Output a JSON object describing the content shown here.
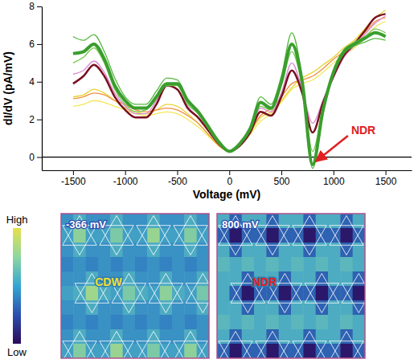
{
  "chart_data": [
    {
      "type": "line",
      "xlabel": "Voltage (mV)",
      "ylabel": "dI/dV (pA/mV)",
      "x": [
        -1500,
        -1400,
        -1300,
        -1200,
        -1100,
        -1000,
        -900,
        -800,
        -700,
        -600,
        -500,
        -400,
        -300,
        -200,
        -100,
        0,
        100,
        200,
        300,
        400,
        500,
        600,
        700,
        800,
        900,
        1000,
        1100,
        1200,
        1300,
        1400,
        1500
      ],
      "xlim": [
        -1800,
        1750
      ],
      "xticks": [
        -1500,
        -1000,
        -500,
        0,
        500,
        1000,
        1500
      ],
      "ylim": [
        -0.7,
        8
      ],
      "yticks": [
        0,
        2,
        4,
        6,
        8
      ],
      "hlines": [
        0
      ],
      "annotations": [
        {
          "text": "NDR",
          "x": 800,
          "y": -0.4,
          "color": "#e02020"
        }
      ],
      "series": [
        {
          "color": "#f2e85a",
          "values": [
            2.7,
            2.8,
            3.0,
            2.9,
            2.7,
            2.5,
            2.3,
            2.2,
            2.3,
            2.4,
            2.3,
            2.0,
            1.6,
            1.1,
            0.6,
            0.3,
            0.6,
            1.2,
            1.9,
            2.3,
            2.9,
            3.6,
            3.9,
            4.1,
            4.5,
            5.0,
            5.4,
            5.8,
            6.3,
            6.9,
            7.2
          ]
        },
        {
          "color": "#e8d230",
          "values": [
            3.2,
            3.3,
            3.6,
            3.4,
            3.0,
            2.6,
            2.4,
            2.3,
            2.5,
            2.8,
            2.7,
            2.3,
            1.8,
            1.2,
            0.6,
            0.3,
            0.6,
            1.3,
            2.1,
            2.4,
            3.0,
            3.7,
            4.2,
            4.5,
            4.9,
            5.3,
            5.8,
            6.2,
            6.8,
            7.4,
            7.8
          ]
        },
        {
          "color": "#f09040",
          "values": [
            3.1,
            3.2,
            3.4,
            3.3,
            3.0,
            2.8,
            2.5,
            2.4,
            2.5,
            2.6,
            2.5,
            2.2,
            1.8,
            1.2,
            0.6,
            0.3,
            0.7,
            1.4,
            2.2,
            2.6,
            3.2,
            3.9,
            4.1,
            4.3,
            4.7,
            5.2,
            5.6,
            6.1,
            6.6,
            7.2,
            7.4
          ]
        },
        {
          "color": "#d98ad0",
          "values": [
            4.4,
            4.6,
            5.1,
            4.5,
            3.4,
            2.7,
            2.3,
            2.3,
            3.0,
            3.8,
            3.6,
            2.7,
            2.1,
            1.4,
            0.7,
            0.3,
            0.6,
            1.4,
            2.6,
            2.4,
            3.4,
            5.0,
            3.6,
            1.8,
            3.0,
            4.2,
            5.3,
            5.9,
            6.5,
            7.1,
            7.5
          ]
        },
        {
          "color": "#7a1020",
          "line_style": "medium",
          "values": [
            3.9,
            4.3,
            4.9,
            4.3,
            3.2,
            2.5,
            2.1,
            2.1,
            2.8,
            3.8,
            3.6,
            2.6,
            2.1,
            1.4,
            0.7,
            0.3,
            0.6,
            1.3,
            2.4,
            2.2,
            3.2,
            4.6,
            3.4,
            1.3,
            2.9,
            4.3,
            5.4,
            6.0,
            6.7,
            7.4,
            7.6
          ]
        },
        {
          "color": "#58b840",
          "values": [
            6.4,
            6.2,
            6.5,
            5.6,
            4.2,
            3.2,
            2.8,
            2.8,
            3.5,
            4.2,
            4.1,
            3.1,
            2.5,
            1.7,
            0.8,
            0.3,
            0.7,
            1.6,
            3.2,
            2.8,
            4.3,
            6.6,
            4.2,
            -0.6,
            2.3,
            4.4,
            5.5,
            5.9,
            6.1,
            6.3,
            6.2
          ]
        },
        {
          "color": "#78c850",
          "values": [
            5.0,
            5.3,
            5.8,
            5.0,
            3.6,
            2.8,
            2.4,
            2.5,
            3.1,
            3.8,
            3.8,
            2.8,
            2.3,
            1.5,
            0.7,
            0.3,
            0.7,
            1.5,
            2.7,
            2.5,
            3.8,
            5.6,
            3.8,
            0.3,
            2.7,
            4.6,
            5.7,
            6.1,
            6.4,
            6.8,
            6.6
          ]
        },
        {
          "color": "#3a9e2e",
          "line_style": "thick",
          "values": [
            5.5,
            5.6,
            6.0,
            5.2,
            3.8,
            3.0,
            2.6,
            2.6,
            3.2,
            3.9,
            3.9,
            3.0,
            2.4,
            1.6,
            0.8,
            0.3,
            0.7,
            1.5,
            2.9,
            2.6,
            4.0,
            6.0,
            4.0,
            -0.4,
            2.5,
            4.5,
            5.6,
            6.0,
            6.3,
            6.6,
            6.4
          ]
        }
      ]
    },
    {
      "type": "heatmap",
      "colorbar": {
        "range": [
          0,
          1
        ],
        "ticks": [
          {
            "value": 1,
            "label": "High"
          },
          {
            "value": 0,
            "label": "Low"
          }
        ],
        "colors": [
          "#2b0a5a",
          "#2c4fb0",
          "#33a6d2",
          "#8fd6a0",
          "#e6e04a"
        ]
      },
      "panels": [
        {
          "label": "-366 mV",
          "annotation": {
            "text": "CDW",
            "color": "#f0e030"
          },
          "cells": [
            [
              0.45,
              0.55,
              0.45,
              0.45,
              0.55,
              0.45,
              0.45,
              0.55,
              0.45,
              0.45,
              0.55,
              0.45
            ],
            [
              0.5,
              0.75,
              0.5,
              0.5,
              0.7,
              0.5,
              0.5,
              0.78,
              0.5,
              0.5,
              0.72,
              0.5
            ],
            [
              0.45,
              0.55,
              0.45,
              0.45,
              0.55,
              0.45,
              0.45,
              0.55,
              0.45,
              0.45,
              0.55,
              0.45
            ],
            [
              0.4,
              0.45,
              0.4,
              0.45,
              0.4,
              0.45,
              0.4,
              0.45,
              0.4,
              0.45,
              0.4,
              0.45
            ],
            [
              0.45,
              0.45,
              0.55,
              0.45,
              0.45,
              0.55,
              0.45,
              0.45,
              0.55,
              0.45,
              0.45,
              0.55
            ],
            [
              0.5,
              0.55,
              0.8,
              0.55,
              0.5,
              0.7,
              0.55,
              0.5,
              0.75,
              0.55,
              0.5,
              0.68
            ],
            [
              0.45,
              0.45,
              0.55,
              0.45,
              0.45,
              0.55,
              0.45,
              0.45,
              0.55,
              0.45,
              0.45,
              0.55
            ],
            [
              0.4,
              0.45,
              0.4,
              0.45,
              0.4,
              0.45,
              0.4,
              0.45,
              0.4,
              0.45,
              0.4,
              0.45
            ],
            [
              0.45,
              0.55,
              0.45,
              0.45,
              0.55,
              0.45,
              0.45,
              0.55,
              0.45,
              0.45,
              0.55,
              0.45
            ],
            [
              0.5,
              0.72,
              0.5,
              0.5,
              0.78,
              0.5,
              0.5,
              0.7,
              0.5,
              0.5,
              0.75,
              0.5
            ]
          ]
        },
        {
          "label": "800 mV",
          "annotation": {
            "text": "NDR",
            "color": "#e02020"
          },
          "cells": [
            [
              0.55,
              0.3,
              0.55,
              0.55,
              0.3,
              0.55,
              0.55,
              0.3,
              0.55,
              0.55,
              0.3,
              0.55
            ],
            [
              0.3,
              0.05,
              0.3,
              0.3,
              0.05,
              0.3,
              0.3,
              0.05,
              0.3,
              0.3,
              0.05,
              0.3
            ],
            [
              0.55,
              0.3,
              0.55,
              0.55,
              0.3,
              0.55,
              0.55,
              0.3,
              0.55,
              0.55,
              0.3,
              0.55
            ],
            [
              0.6,
              0.55,
              0.6,
              0.55,
              0.6,
              0.55,
              0.6,
              0.55,
              0.6,
              0.55,
              0.6,
              0.55
            ],
            [
              0.55,
              0.55,
              0.3,
              0.55,
              0.55,
              0.3,
              0.55,
              0.55,
              0.3,
              0.55,
              0.55,
              0.3
            ],
            [
              0.55,
              0.3,
              0.05,
              0.3,
              0.3,
              0.05,
              0.3,
              0.3,
              0.05,
              0.3,
              0.3,
              0.05
            ],
            [
              0.55,
              0.55,
              0.3,
              0.55,
              0.55,
              0.3,
              0.55,
              0.55,
              0.3,
              0.55,
              0.55,
              0.3
            ],
            [
              0.6,
              0.55,
              0.6,
              0.55,
              0.6,
              0.55,
              0.6,
              0.55,
              0.6,
              0.55,
              0.6,
              0.55
            ],
            [
              0.55,
              0.3,
              0.55,
              0.55,
              0.3,
              0.55,
              0.55,
              0.3,
              0.55,
              0.55,
              0.3,
              0.55
            ],
            [
              0.3,
              0.05,
              0.3,
              0.3,
              0.05,
              0.3,
              0.3,
              0.05,
              0.3,
              0.3,
              0.05,
              0.3
            ]
          ]
        }
      ]
    }
  ]
}
